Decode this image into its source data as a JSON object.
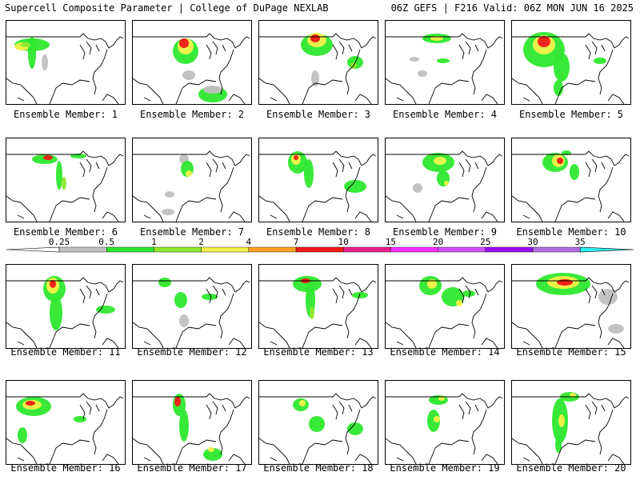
{
  "header": {
    "title_left": "Supercell Composite Parameter | College of DuPage NEXLAB",
    "title_right": "06Z GEFS | F216 Valid: 06Z MON JUN 16 2025"
  },
  "colorbar": {
    "ticks": [
      "0.25",
      "0.5",
      "1",
      "2",
      "4",
      "7",
      "10",
      "15",
      "20",
      "25",
      "30",
      "35"
    ],
    "colors": [
      "#c0c0c0",
      "#2ee82e",
      "#8ee82e",
      "#f2f24a",
      "#ffa020",
      "#f01818",
      "#e8208c",
      "#ff30ff",
      "#d050ff",
      "#9810f0",
      "#b070e0",
      "#30f0f0"
    ]
  },
  "members": [
    {
      "label": "Ensemble Member: 1"
    },
    {
      "label": "Ensemble Member: 2"
    },
    {
      "label": "Ensemble Member: 3"
    },
    {
      "label": "Ensemble Member: 4"
    },
    {
      "label": "Ensemble Member: 5"
    },
    {
      "label": "Ensemble Member: 6"
    },
    {
      "label": "Ensemble Member: 7"
    },
    {
      "label": "Ensemble Member: 8"
    },
    {
      "label": "Ensemble Member: 9"
    },
    {
      "label": "Ensemble Member: 10"
    },
    {
      "label": "Ensemble Member: 11"
    },
    {
      "label": "Ensemble Member: 12"
    },
    {
      "label": "Ensemble Member: 13"
    },
    {
      "label": "Ensemble Member: 14"
    },
    {
      "label": "Ensemble Member: 15"
    },
    {
      "label": "Ensemble Member: 16"
    },
    {
      "label": "Ensemble Member: 17"
    },
    {
      "label": "Ensemble Member: 18"
    },
    {
      "label": "Ensemble Member: 19"
    },
    {
      "label": "Ensemble Member: 20"
    }
  ]
}
